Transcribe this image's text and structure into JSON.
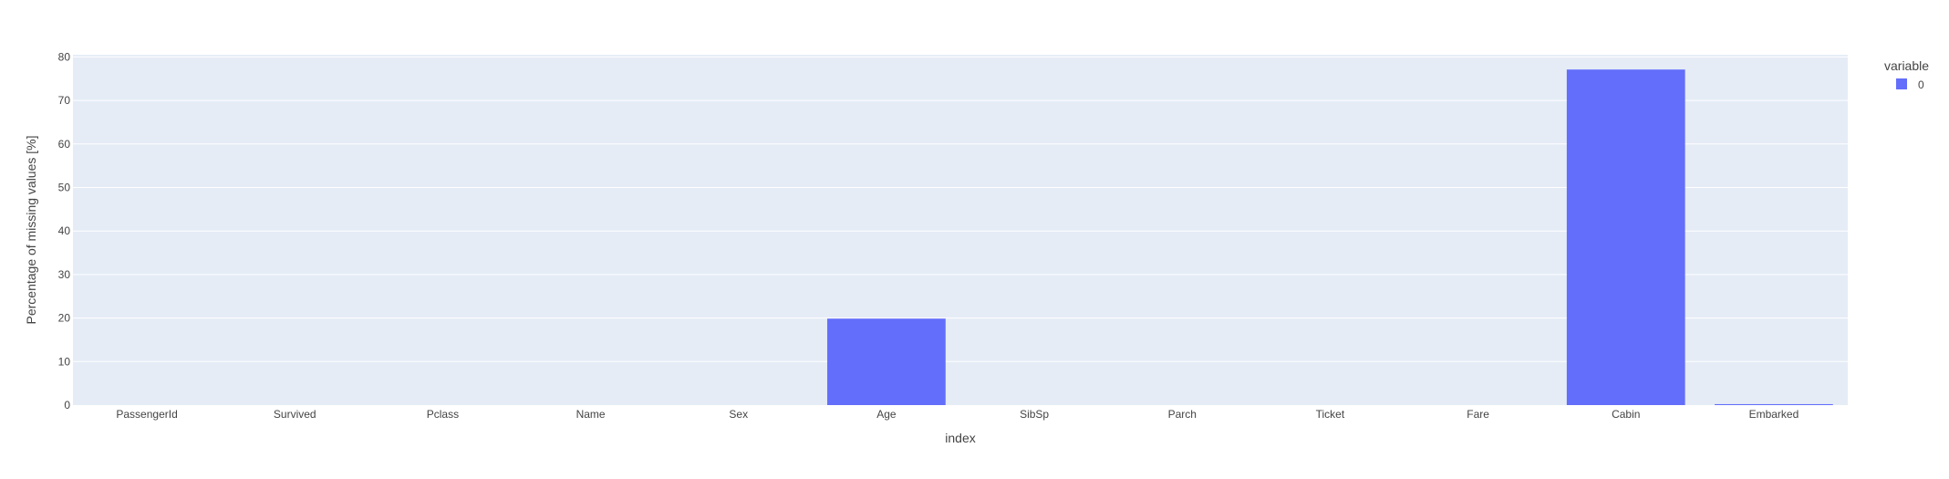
{
  "chart_data": {
    "type": "bar",
    "categories": [
      "PassengerId",
      "Survived",
      "Pclass",
      "Name",
      "Sex",
      "Age",
      "SibSp",
      "Parch",
      "Ticket",
      "Fare",
      "Cabin",
      "Embarked"
    ],
    "series": [
      {
        "name": "0",
        "values": [
          0,
          0,
          0,
          0,
          0,
          19.87,
          0,
          0,
          0,
          0,
          77.1,
          0.22
        ]
      }
    ],
    "xlabel": "index",
    "ylabel": "Percentage of missing values [%]",
    "ylim": [
      0,
      80.5
    ],
    "yticks": [
      0,
      10,
      20,
      30,
      40,
      50,
      60,
      70,
      80
    ],
    "legend": {
      "title": "variable",
      "placement": "top-right"
    },
    "grid": true,
    "colors": {
      "bar": "#636efa",
      "plot_bg": "#e5ecf6",
      "grid": "#ffffff",
      "text": "#444444"
    }
  }
}
